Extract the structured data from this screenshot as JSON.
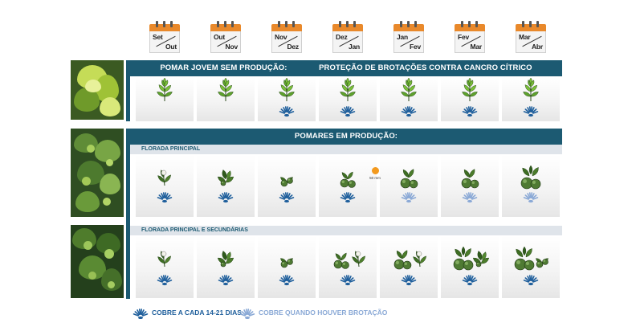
{
  "months": [
    {
      "a": "Set",
      "b": "Out"
    },
    {
      "a": "Out",
      "b": "Nov"
    },
    {
      "a": "Nov",
      "b": "Dez"
    },
    {
      "a": "Dez",
      "b": "Jan"
    },
    {
      "a": "Jan",
      "b": "Fev"
    },
    {
      "a": "Fev",
      "b": "Mar"
    },
    {
      "a": "Mar",
      "b": "Abr"
    }
  ],
  "section1": {
    "title": "POMAR JOVEM SEM PRODUÇÃO:",
    "subtitle": "PROTEÇÃO DE BROTAÇÕES CONTRA CANCRO CÍTRICO",
    "plants": [
      "flush",
      "flush",
      "flush",
      "flush",
      "flush",
      "flush",
      "flush"
    ],
    "spray": [
      "none",
      "none",
      "dark",
      "dark",
      "dark",
      "dark",
      "dark"
    ]
  },
  "section2": {
    "title": "POMARES EM PRODUÇÃO:",
    "sub1": {
      "label": "FLORADA PRINCIPAL",
      "plants": [
        [
          "flower"
        ],
        [
          "leaves-fruitlet"
        ],
        [
          "small-fruits"
        ],
        [
          "medium-fruits"
        ],
        [
          "large-fruits"
        ],
        [
          "large-fruits"
        ],
        [
          "full-fruits"
        ]
      ],
      "spray": [
        "dark",
        "dark",
        "dark",
        "dark",
        "light",
        "light",
        "light"
      ],
      "fruit_marker": {
        "label": "50 mm",
        "column": 4
      }
    },
    "sub2": {
      "label": "FLORADA PRINCIPAL E SECUNDÁRIAS",
      "plants": [
        [
          "flower"
        ],
        [
          "leaves-fruitlet"
        ],
        [
          "small-fruits"
        ],
        [
          "medium-fruits",
          "flower"
        ],
        [
          "large-fruits",
          "flower"
        ],
        [
          "full-fruits",
          "leaves-fruitlet"
        ],
        [
          "full-fruits",
          "small-fruits"
        ]
      ],
      "spray": [
        "dark",
        "dark",
        "dark",
        "dark",
        "dark",
        "dark",
        "dark"
      ]
    }
  },
  "legend": {
    "dark_label": "COBRE A CADA 14-21 DIAS",
    "light_label": "COBRE QUANDO HOUVER BROTAÇÃO"
  },
  "colors": {
    "band": "#1c5a72",
    "spray_dark": "#1f5f9c",
    "spray_light": "#8aa9d6",
    "calendar_top": "#e9892b",
    "fruit_marker": "#f39a1e"
  }
}
